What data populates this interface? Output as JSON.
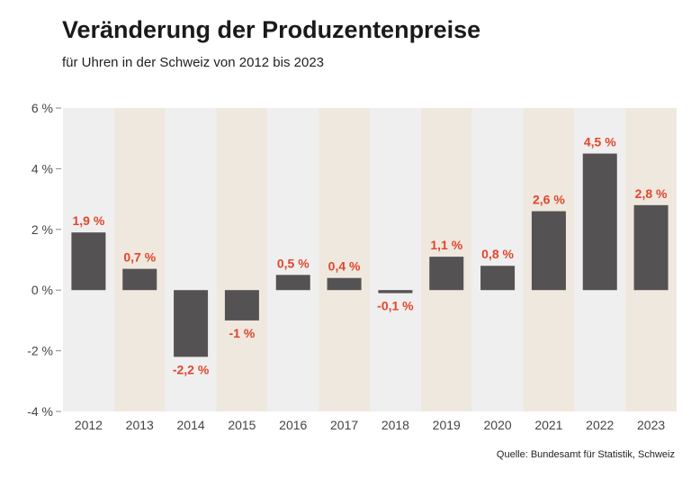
{
  "colors": {
    "bar": "#555253",
    "label": "#e1462c",
    "band_even": "#f0efef",
    "band_odd": "#efe8df",
    "axis_text": "#444444"
  },
  "chart_data": {
    "type": "bar",
    "title": "Veränderung der Produzentenpreise",
    "subtitle": "für Uhren in der Schweiz von 2012 bis 2023",
    "source": "Quelle: Bundesamt für Statistik, Schweiz",
    "categories": [
      "2012",
      "2013",
      "2014",
      "2015",
      "2016",
      "2017",
      "2018",
      "2019",
      "2020",
      "2021",
      "2022",
      "2023"
    ],
    "values": [
      1.9,
      0.7,
      -2.2,
      -1.0,
      0.5,
      0.4,
      -0.1,
      1.1,
      0.8,
      2.6,
      4.5,
      2.8
    ],
    "value_labels": [
      "1,9 %",
      "0,7 %",
      "-2,2 %",
      "-1 %",
      "0,5 %",
      "0,4 %",
      "-0,1 %",
      "1,1 %",
      "0,8 %",
      "2,6 %",
      "4,5 %",
      "2,8 %"
    ],
    "ylim": [
      -4,
      6
    ],
    "yticks": [
      6,
      4,
      2,
      0,
      -2,
      -4
    ],
    "ytick_labels": [
      "6 %",
      "4 %",
      "2 %",
      "0 %",
      "-2 %",
      "-4 %"
    ],
    "xlabel": "",
    "ylabel": "",
    "grid": false,
    "legend": "none"
  }
}
